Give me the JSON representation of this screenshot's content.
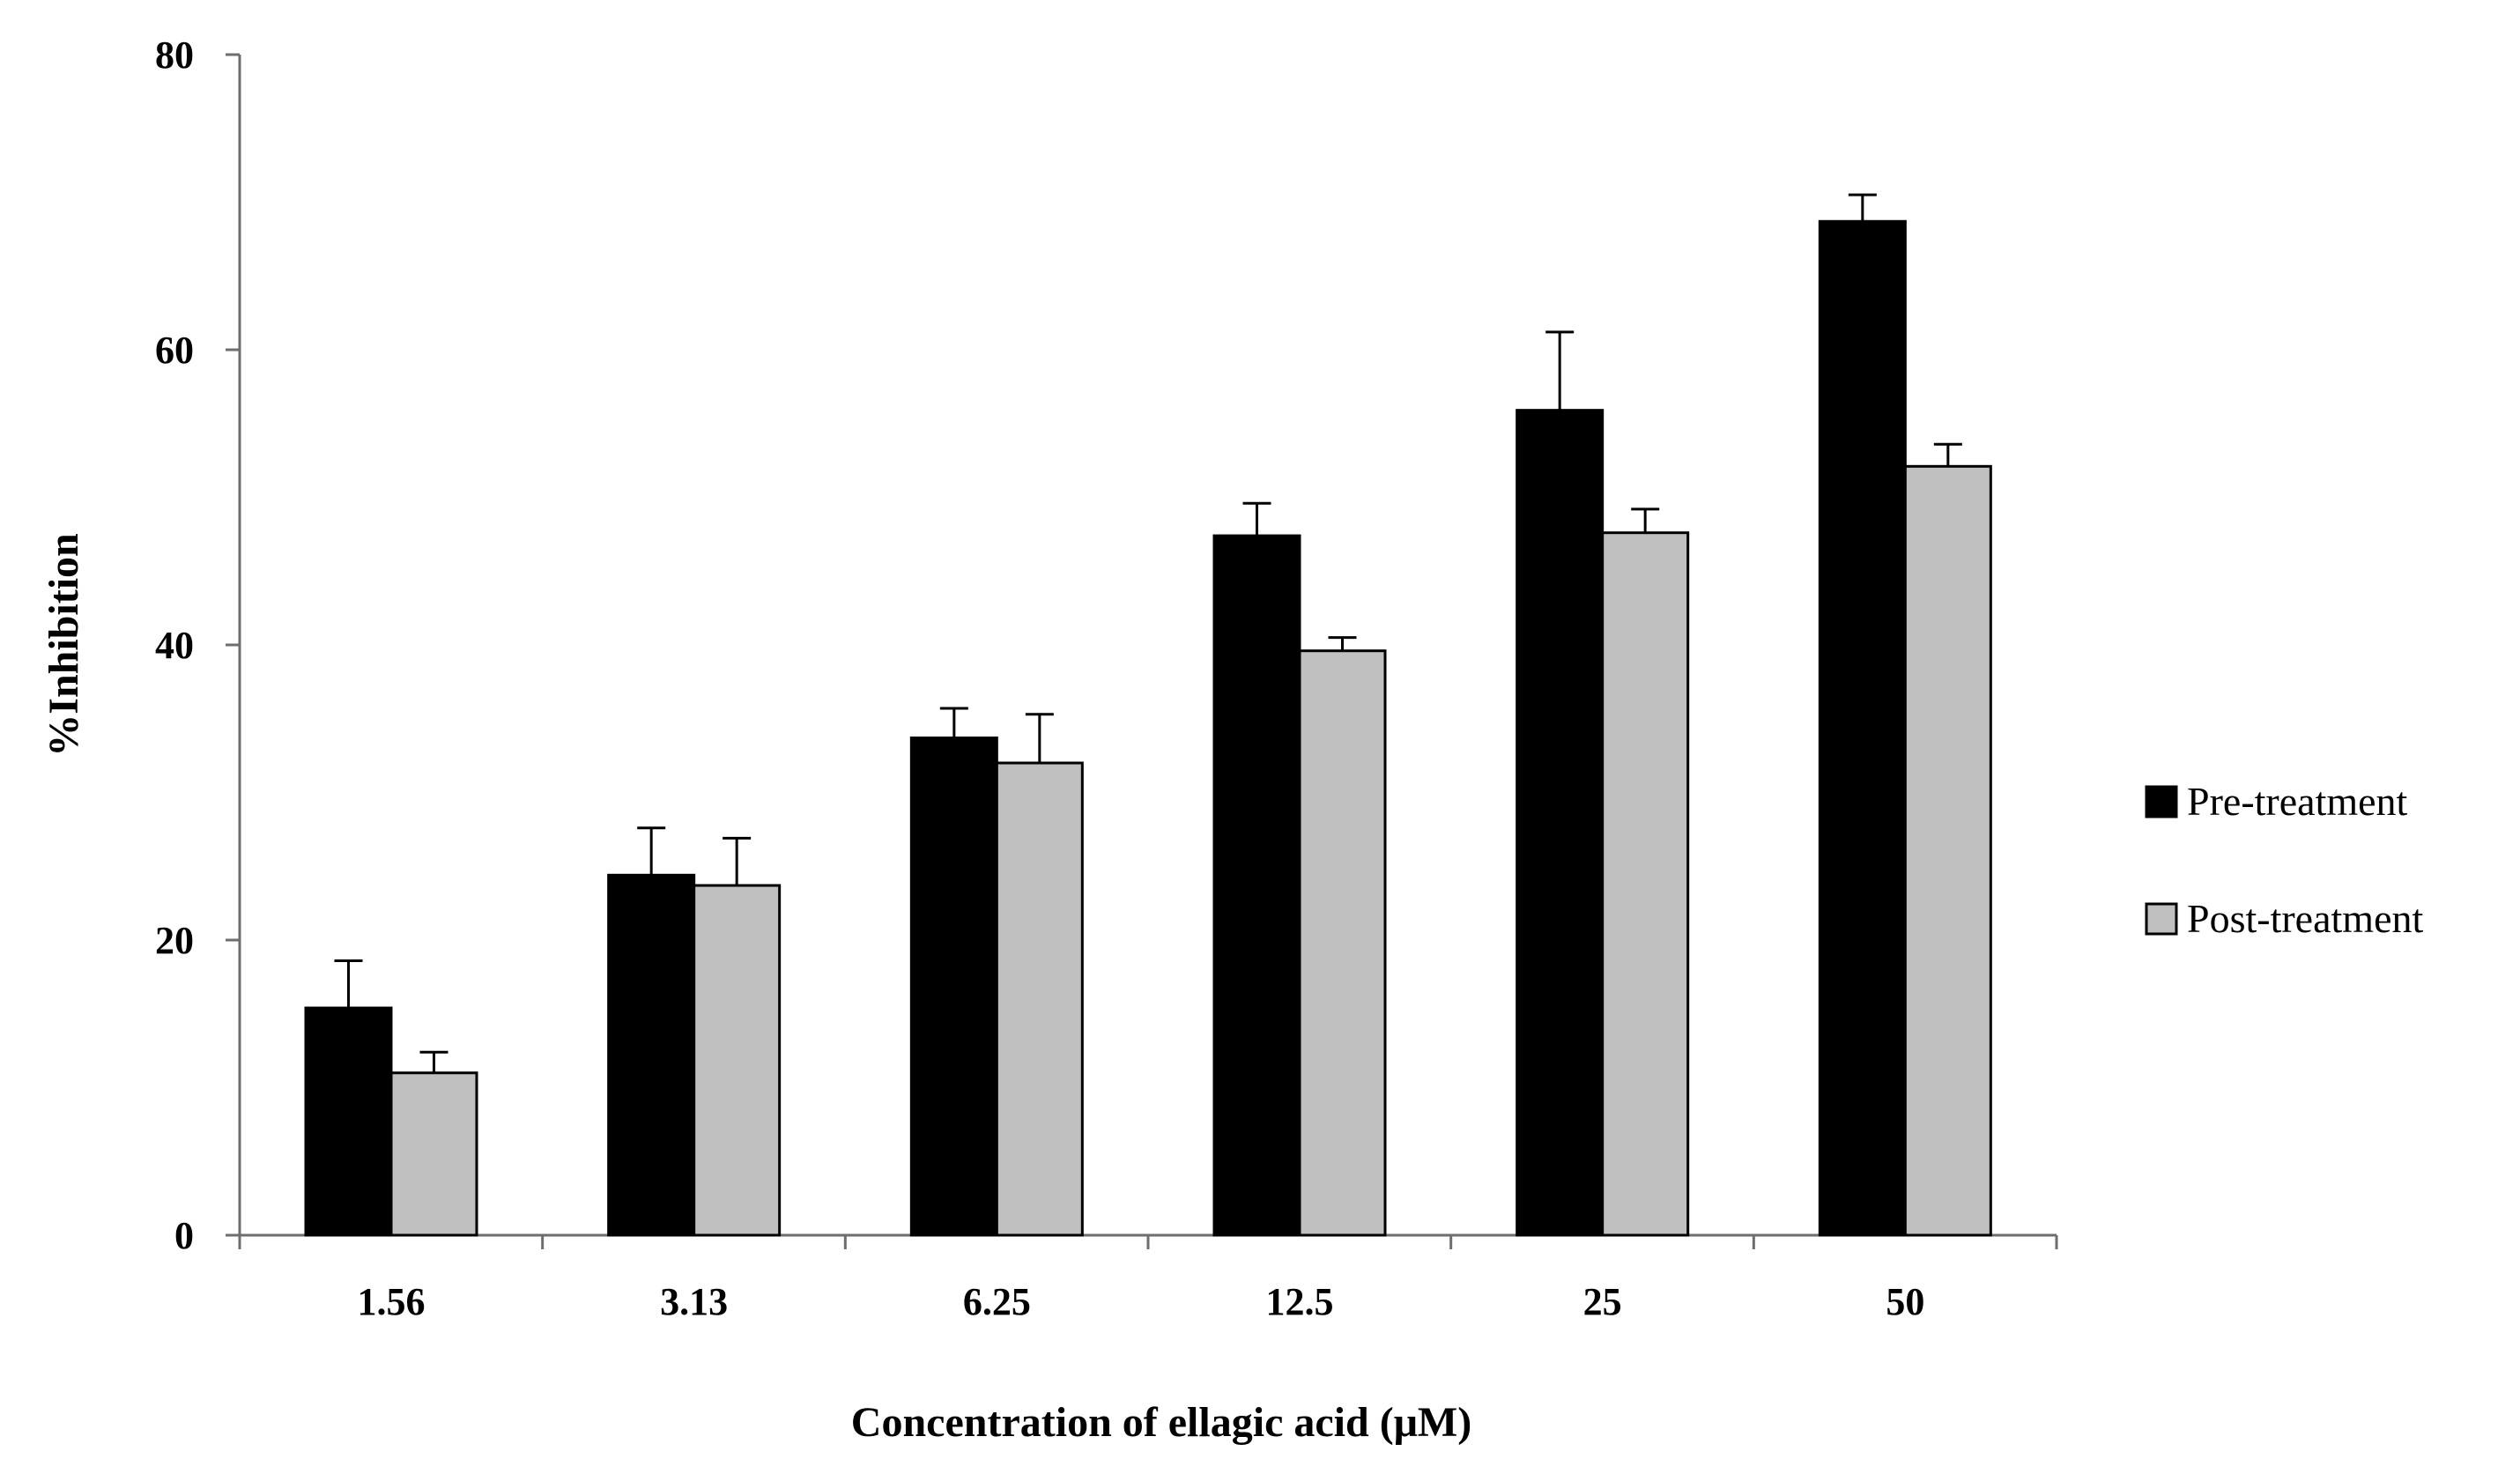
{
  "chart_data": {
    "type": "bar",
    "title": "",
    "xlabel": "Concentration of ellagic acid (μM)",
    "ylabel": "%Inhibition",
    "categories": [
      "1.56",
      "3.13",
      "6.25",
      "12.5",
      "25",
      "50"
    ],
    "ylim": [
      0,
      80
    ],
    "yticks": [
      0,
      20,
      40,
      60,
      80
    ],
    "grid": false,
    "legend_position": "right",
    "series": [
      {
        "name": "Pre-treatment",
        "color": "#000000",
        "values": [
          15.4,
          24.4,
          33.7,
          47.4,
          55.9,
          68.7
        ],
        "errors": [
          3.2,
          3.2,
          2.0,
          2.2,
          5.3,
          1.8
        ]
      },
      {
        "name": "Post-treatment",
        "color": "#c0c0c0",
        "values": [
          11.0,
          23.7,
          32.0,
          39.6,
          47.6,
          52.1
        ],
        "errors": [
          1.4,
          3.2,
          3.3,
          0.9,
          1.6,
          1.5
        ]
      }
    ]
  }
}
